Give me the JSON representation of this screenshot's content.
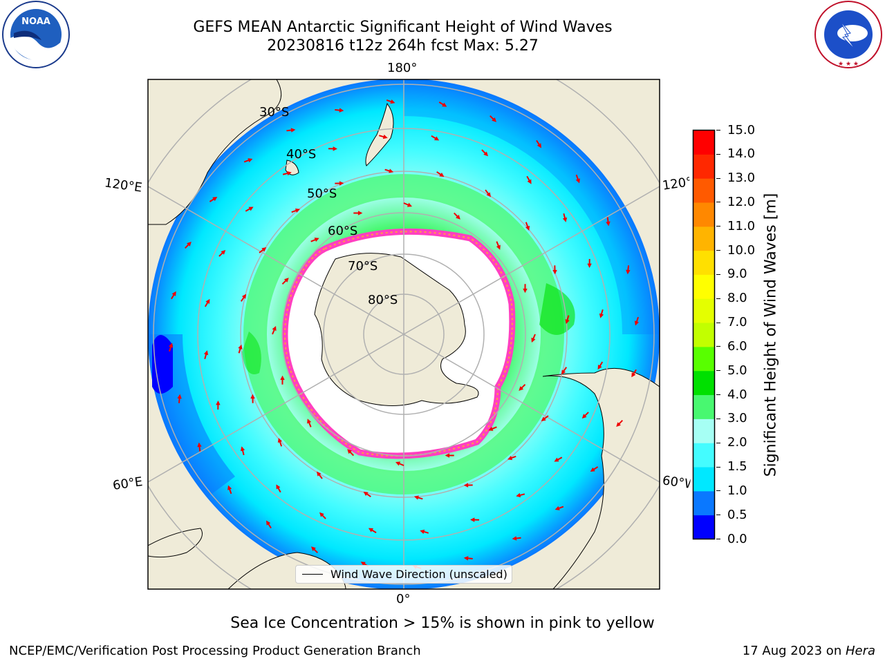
{
  "title": {
    "line1": "GEFS MEAN Antarctic Significant Height of Wind Waves",
    "line2": "20230816 t12z 264h fcst   Max: 5.27"
  },
  "logos": {
    "noaa": {
      "text": "NOAA",
      "ring_text": "NATIONAL OCEANIC AND ATMOSPHERIC ADMINISTRATION"
    },
    "nws": {
      "ring_text": "NATIONAL WEATHER SERVICE"
    }
  },
  "map": {
    "projection": "south-polar-stereographic",
    "longitude_labels": {
      "top": "180°",
      "bottom": "0°",
      "upper_left": "120°E",
      "upper_right": "120°W",
      "lower_left": "60°E",
      "lower_right": "60°W"
    },
    "latitude_labels": [
      "30°S",
      "40°S",
      "50°S",
      "60°S",
      "70°S",
      "80°S"
    ],
    "legend": {
      "label": "Wind Wave Direction (unscaled)"
    },
    "colors": {
      "land": "#efebd8",
      "ice_edge": "#ff40c0",
      "ice_interior": "#ffffff",
      "arrow": "#ee0000",
      "grid": "#b0b0b0"
    }
  },
  "colorbar": {
    "label": "Significant Height of Wind Waves [m]",
    "ticks": [
      "0.0",
      "0.5",
      "1.0",
      "1.5",
      "2.0",
      "3.0",
      "4.0",
      "5.0",
      "6.0",
      "7.0",
      "8.0",
      "9.0",
      "10.0",
      "11.0",
      "12.0",
      "13.0",
      "14.0",
      "15.0"
    ],
    "colors": [
      "#0000ff",
      "#0a78ff",
      "#00e8ff",
      "#44fcff",
      "#a6fff4",
      "#48f870",
      "#00e000",
      "#58ff00",
      "#c2ff00",
      "#e4ff00",
      "#ffff00",
      "#ffe000",
      "#ffb400",
      "#ff8800",
      "#ff5a00",
      "#ff2800",
      "#ff0000"
    ]
  },
  "caption": "Sea Ice Concentration > 15% is shown in pink to yellow",
  "footer": {
    "left": "NCEP/EMC/Verification Post Processing Product Generation Branch",
    "right_prefix": "17 Aug 2023 on ",
    "right_machine": "Hera"
  }
}
